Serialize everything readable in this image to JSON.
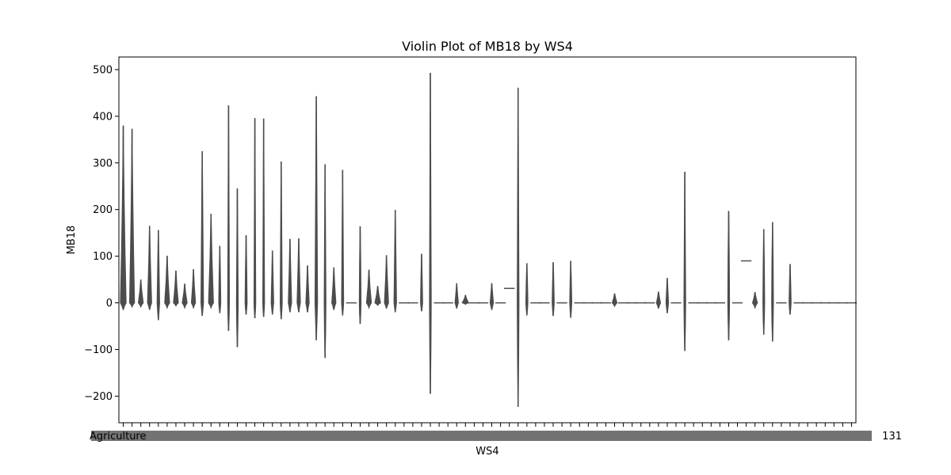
{
  "chart_data": {
    "type": "violin",
    "title": "Violin Plot of MB18 by WS4",
    "xlabel": "WS4",
    "ylabel": "MB18",
    "ylim": [
      -257,
      527
    ],
    "yticks": [
      -200,
      -100,
      0,
      100,
      200,
      300,
      400,
      500
    ],
    "grid": false,
    "legend": "none",
    "violin_color": "#4d4d4d",
    "category_count": 84,
    "xtick_labels_overlap": true,
    "xtick_label_first": "Agriculture",
    "xtick_label_last": "131",
    "violins": [
      {
        "slot": 0,
        "min": -15,
        "max": 380,
        "bulge": 3.5
      },
      {
        "slot": 1,
        "min": -8,
        "max": 373,
        "bulge": 3
      },
      {
        "slot": 2,
        "min": -8,
        "max": 50,
        "bulge": 3
      },
      {
        "slot": 3,
        "min": -15,
        "max": 165,
        "bulge": 2.5
      },
      {
        "slot": 4,
        "min": -37,
        "max": 156,
        "bulge": 1.5
      },
      {
        "slot": 5,
        "min": -10,
        "max": 101,
        "bulge": 3
      },
      {
        "slot": 6,
        "min": -6,
        "max": 69,
        "bulge": 3
      },
      {
        "slot": 7,
        "min": -10,
        "max": 41,
        "bulge": 3
      },
      {
        "slot": 8,
        "min": -10,
        "max": 72,
        "bulge": 2.5
      },
      {
        "slot": 9,
        "min": -28,
        "max": 325,
        "bulge": 1.5
      },
      {
        "slot": 10,
        "min": -10,
        "max": 191,
        "bulge": 3
      },
      {
        "slot": 11,
        "min": -22,
        "max": 122,
        "bulge": 1.2
      },
      {
        "slot": 12,
        "min": -60,
        "max": 423,
        "bulge": 1
      },
      {
        "slot": 13,
        "min": -95,
        "max": 245,
        "bulge": 1
      },
      {
        "slot": 14,
        "min": -25,
        "max": 145,
        "bulge": 1.2
      },
      {
        "slot": 15,
        "min": -33,
        "max": 396,
        "bulge": 1
      },
      {
        "slot": 16,
        "min": -30,
        "max": 395,
        "bulge": 1
      },
      {
        "slot": 17,
        "min": -25,
        "max": 112,
        "bulge": 1.5
      },
      {
        "slot": 18,
        "min": -35,
        "max": 303,
        "bulge": 1.2
      },
      {
        "slot": 19,
        "min": -20,
        "max": 137,
        "bulge": 2
      },
      {
        "slot": 20,
        "min": -20,
        "max": 138,
        "bulge": 2
      },
      {
        "slot": 21,
        "min": -20,
        "max": 80,
        "bulge": 2
      },
      {
        "slot": 22,
        "min": -80,
        "max": 443,
        "bulge": 1.5
      },
      {
        "slot": 23,
        "min": -118,
        "max": 297,
        "bulge": 1
      },
      {
        "slot": 24,
        "min": -15,
        "max": 76,
        "bulge": 2.5
      },
      {
        "slot": 25,
        "min": -27,
        "max": 285,
        "bulge": 1.2
      },
      {
        "slot": 26,
        "min": 0,
        "max": 0,
        "bulge": 0
      },
      {
        "slot": 27,
        "min": -45,
        "max": 164,
        "bulge": 1
      },
      {
        "slot": 28,
        "min": -10,
        "max": 71,
        "bulge": 3
      },
      {
        "slot": 29,
        "min": -5,
        "max": 36,
        "bulge": 3.5
      },
      {
        "slot": 30,
        "min": -12,
        "max": 102,
        "bulge": 2.5
      },
      {
        "slot": 31,
        "min": -20,
        "max": 199,
        "bulge": 1.5
      },
      {
        "slot": 32,
        "min": 0,
        "max": 0,
        "bulge": 0
      },
      {
        "slot": 33,
        "min": 0,
        "max": 0,
        "bulge": 0
      },
      {
        "slot": 34,
        "min": -18,
        "max": 105,
        "bulge": 1.2
      },
      {
        "slot": 35,
        "min": -195,
        "max": 493,
        "bulge": 1
      },
      {
        "slot": 36,
        "min": 0,
        "max": 0,
        "bulge": 0
      },
      {
        "slot": 37,
        "min": 0,
        "max": 0,
        "bulge": 0
      },
      {
        "slot": 38,
        "min": -12,
        "max": 42,
        "bulge": 2
      },
      {
        "slot": 39,
        "min": -3,
        "max": 17,
        "bulge": 4
      },
      {
        "slot": 40,
        "min": 0,
        "max": 0,
        "bulge": 0
      },
      {
        "slot": 41,
        "min": 0,
        "max": 0,
        "bulge": 0
      },
      {
        "slot": 42,
        "min": -15,
        "max": 42,
        "bulge": 2
      },
      {
        "slot": 43,
        "min": 0,
        "max": 0,
        "bulge": 0
      },
      {
        "slot": 44,
        "min": 31,
        "max": 31,
        "bulge": 0
      },
      {
        "slot": 45,
        "min": -223,
        "max": 461,
        "bulge": 1
      },
      {
        "slot": 46,
        "min": -27,
        "max": 85,
        "bulge": 1.2
      },
      {
        "slot": 47,
        "min": 0,
        "max": 0,
        "bulge": 0
      },
      {
        "slot": 48,
        "min": 0,
        "max": 0,
        "bulge": 0
      },
      {
        "slot": 49,
        "min": -28,
        "max": 87,
        "bulge": 1.2
      },
      {
        "slot": 50,
        "min": 0,
        "max": 0,
        "bulge": 0
      },
      {
        "slot": 51,
        "min": -32,
        "max": 90,
        "bulge": 1.2
      },
      {
        "slot": 52,
        "min": 0,
        "max": 0,
        "bulge": 0
      },
      {
        "slot": 53,
        "min": 0,
        "max": 0,
        "bulge": 0
      },
      {
        "slot": 54,
        "min": 0,
        "max": 0,
        "bulge": 0
      },
      {
        "slot": 55,
        "min": 0,
        "max": 0,
        "bulge": 0
      },
      {
        "slot": 56,
        "min": -7,
        "max": 20,
        "bulge": 3
      },
      {
        "slot": 57,
        "min": 0,
        "max": 0,
        "bulge": 0
      },
      {
        "slot": 58,
        "min": 0,
        "max": 0,
        "bulge": 0
      },
      {
        "slot": 59,
        "min": 0,
        "max": 0,
        "bulge": 0
      },
      {
        "slot": 60,
        "min": 0,
        "max": 0,
        "bulge": 0
      },
      {
        "slot": 61,
        "min": -12,
        "max": 24,
        "bulge": 2.5
      },
      {
        "slot": 62,
        "min": -22,
        "max": 53,
        "bulge": 1.5
      },
      {
        "slot": 63,
        "min": 0,
        "max": 0,
        "bulge": 0
      },
      {
        "slot": 64,
        "min": -103,
        "max": 281,
        "bulge": 1
      },
      {
        "slot": 65,
        "min": 0,
        "max": 0,
        "bulge": 0
      },
      {
        "slot": 66,
        "min": 0,
        "max": 0,
        "bulge": 0
      },
      {
        "slot": 67,
        "min": 0,
        "max": 0,
        "bulge": 0
      },
      {
        "slot": 68,
        "min": 0,
        "max": 0,
        "bulge": 0
      },
      {
        "slot": 69,
        "min": -80,
        "max": 197,
        "bulge": 1
      },
      {
        "slot": 70,
        "min": 0,
        "max": 0,
        "bulge": 0
      },
      {
        "slot": 71,
        "min": 90,
        "max": 90,
        "bulge": 0
      },
      {
        "slot": 72,
        "min": -10,
        "max": 23,
        "bulge": 3
      },
      {
        "slot": 73,
        "min": -68,
        "max": 158,
        "bulge": 1
      },
      {
        "slot": 74,
        "min": -83,
        "max": 173,
        "bulge": 1
      },
      {
        "slot": 75,
        "min": 0,
        "max": 0,
        "bulge": 0
      },
      {
        "slot": 76,
        "min": -25,
        "max": 83,
        "bulge": 1.2
      },
      {
        "slot": 77,
        "min": 0,
        "max": 0,
        "bulge": 0
      },
      {
        "slot": 78,
        "min": 0,
        "max": 0,
        "bulge": 0
      },
      {
        "slot": 79,
        "min": 0,
        "max": 0,
        "bulge": 0
      },
      {
        "slot": 80,
        "min": 0,
        "max": 0,
        "bulge": 0
      },
      {
        "slot": 81,
        "min": 0,
        "max": 0,
        "bulge": 0
      },
      {
        "slot": 82,
        "min": 0,
        "max": 0,
        "bulge": 0
      },
      {
        "slot": 83,
        "min": 0,
        "max": 0,
        "bulge": 0
      }
    ]
  }
}
